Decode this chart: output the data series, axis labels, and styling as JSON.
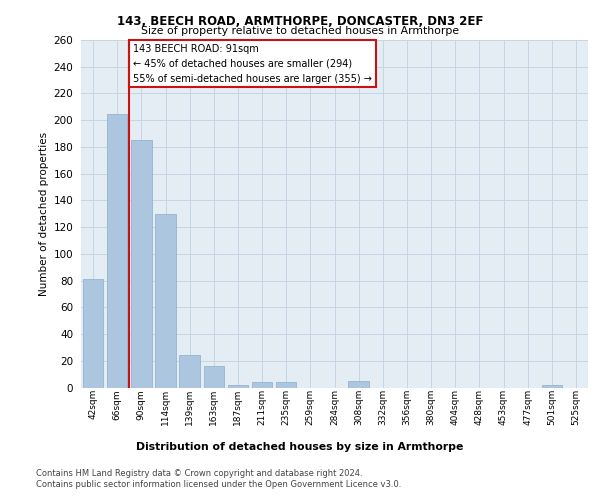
{
  "title1": "143, BEECH ROAD, ARMTHORPE, DONCASTER, DN3 2EF",
  "title2": "Size of property relative to detached houses in Armthorpe",
  "xlabel": "Distribution of detached houses by size in Armthorpe",
  "ylabel": "Number of detached properties",
  "categories": [
    "42sqm",
    "66sqm",
    "90sqm",
    "114sqm",
    "139sqm",
    "163sqm",
    "187sqm",
    "211sqm",
    "235sqm",
    "259sqm",
    "284sqm",
    "308sqm",
    "332sqm",
    "356sqm",
    "380sqm",
    "404sqm",
    "428sqm",
    "453sqm",
    "477sqm",
    "501sqm",
    "525sqm"
  ],
  "values": [
    81,
    205,
    185,
    130,
    24,
    16,
    2,
    4,
    4,
    0,
    0,
    5,
    0,
    0,
    0,
    0,
    0,
    0,
    0,
    2,
    0
  ],
  "bar_color": "#adc6df",
  "bar_edge_color": "#8aaec8",
  "grid_color": "#c5d5e5",
  "background_color": "#e4ecf4",
  "vline_color": "#cc1111",
  "annotation_box_color": "#ffffff",
  "annotation_border_color": "#cc1111",
  "ylim": [
    0,
    260
  ],
  "yticks": [
    0,
    20,
    40,
    60,
    80,
    100,
    120,
    140,
    160,
    180,
    200,
    220,
    240,
    260
  ],
  "marker_label": "143 BEECH ROAD: 91sqm",
  "annotation_line1": "← 45% of detached houses are smaller (294)",
  "annotation_line2": "55% of semi-detached houses are larger (355) →",
  "footer1": "Contains HM Land Registry data © Crown copyright and database right 2024.",
  "footer2": "Contains public sector information licensed under the Open Government Licence v3.0."
}
